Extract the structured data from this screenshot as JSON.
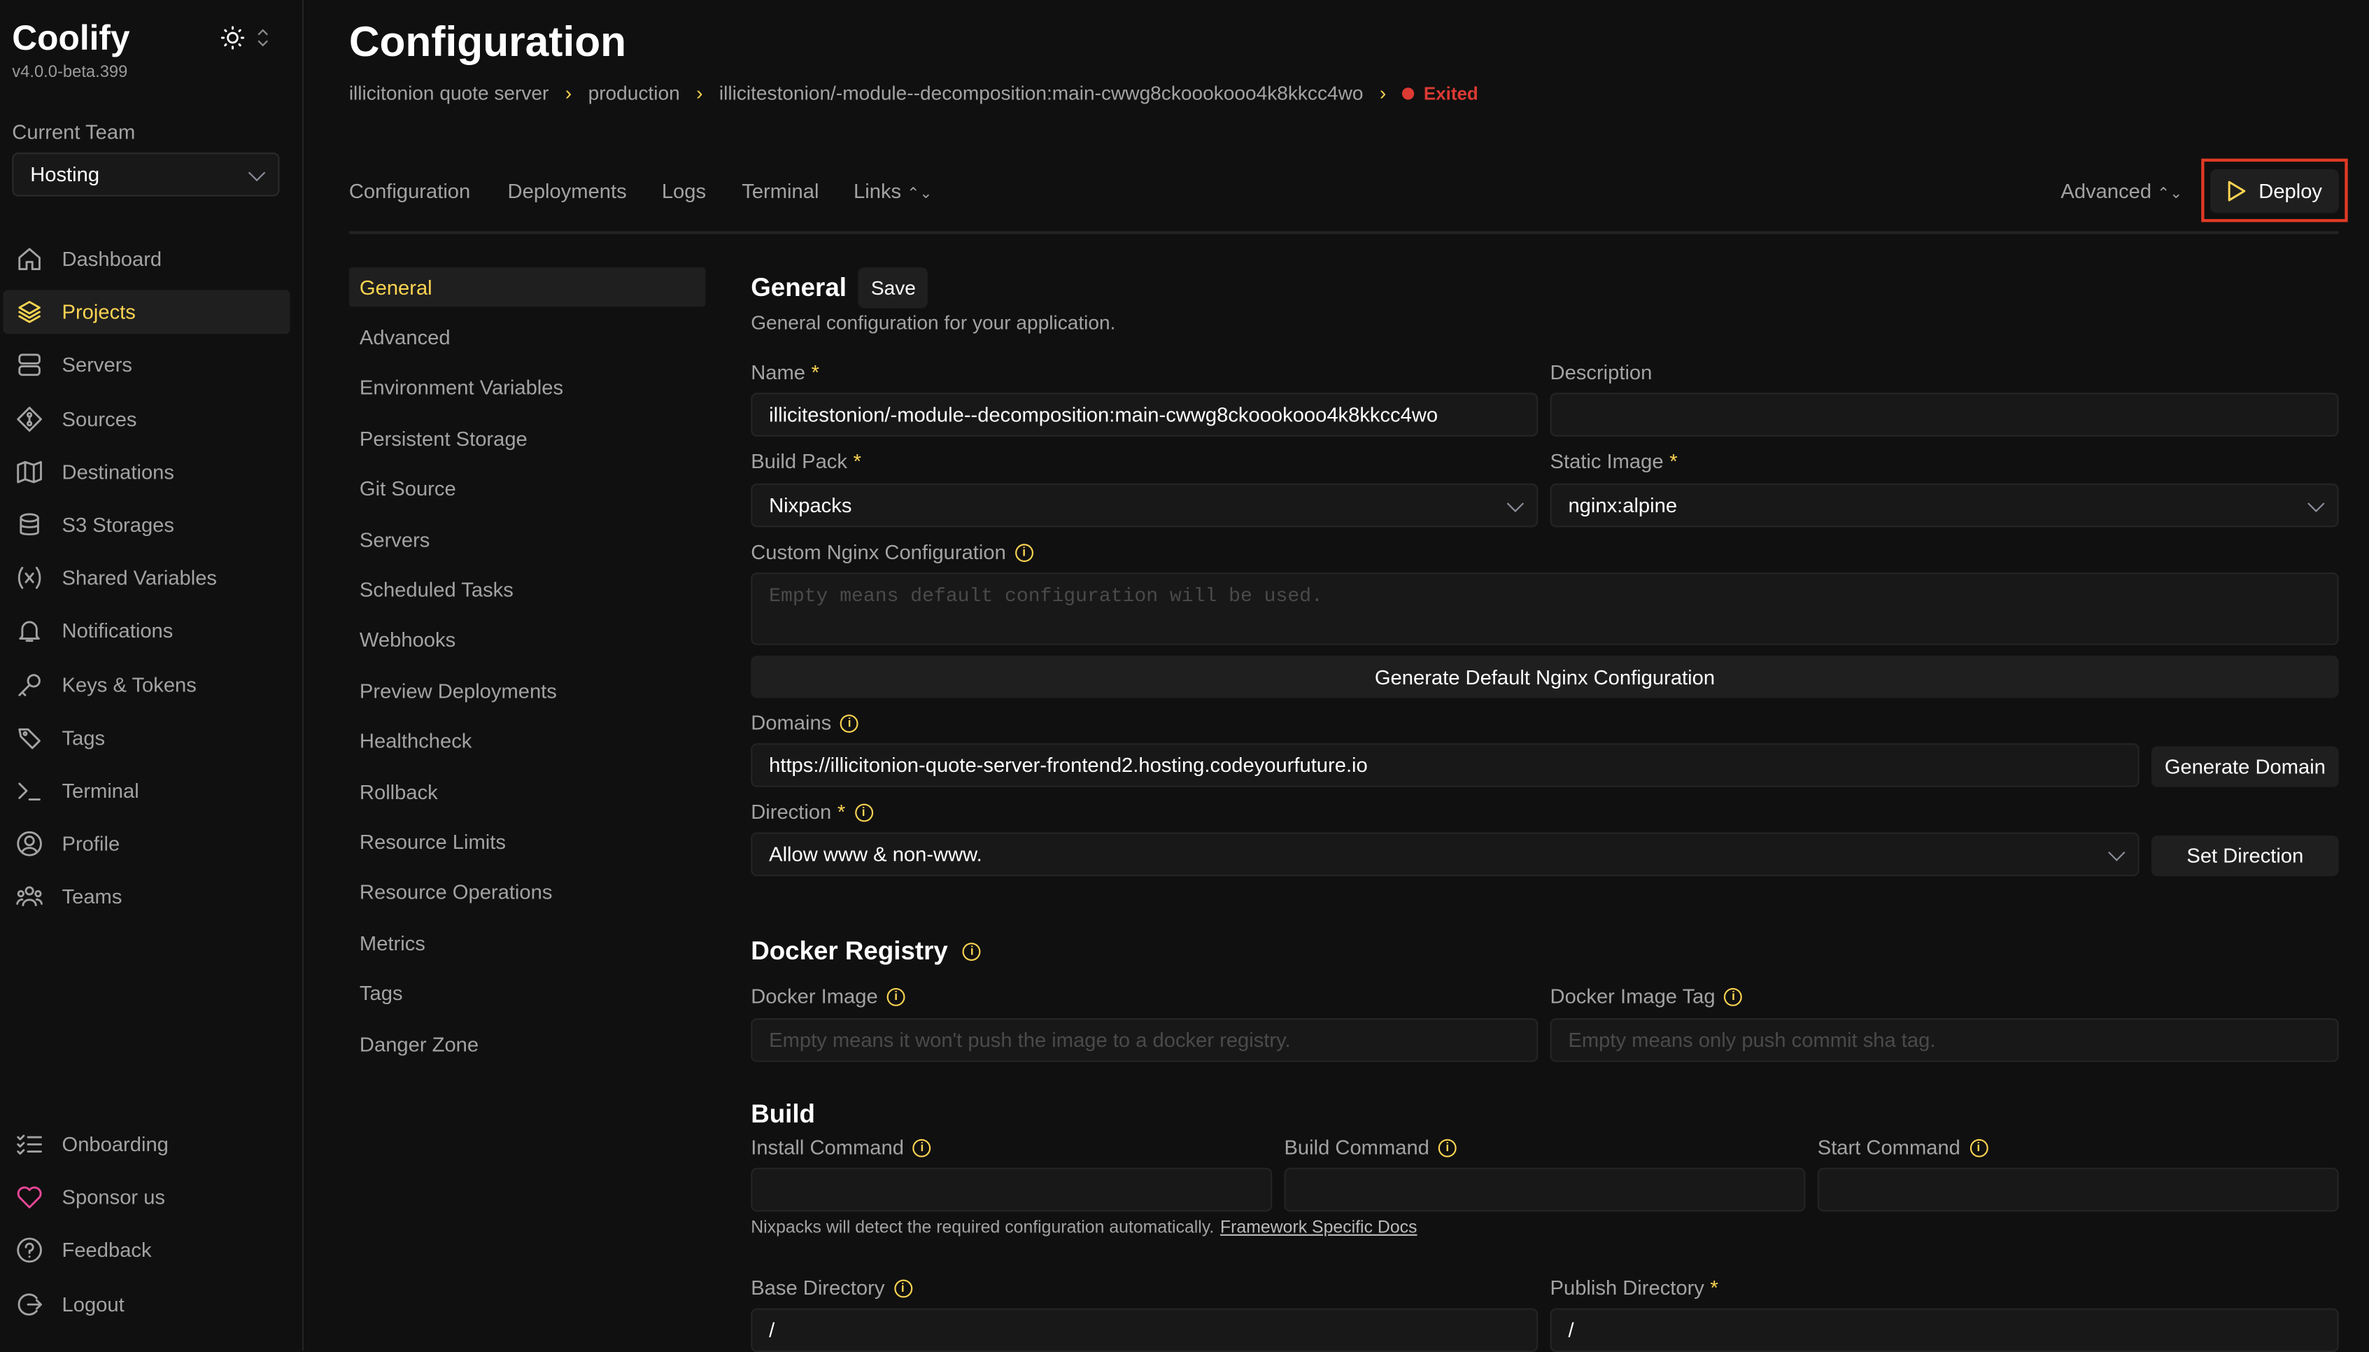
{
  "sidebar": {
    "logo": "Coolify",
    "version": "v4.0.0-beta.399",
    "team_label": "Current Team",
    "team_value": "Hosting",
    "items": [
      {
        "label": "Dashboard",
        "icon": "home-icon"
      },
      {
        "label": "Projects",
        "icon": "layers-icon",
        "active": true
      },
      {
        "label": "Servers",
        "icon": "server-icon"
      },
      {
        "label": "Sources",
        "icon": "git-icon"
      },
      {
        "label": "Destinations",
        "icon": "map-icon"
      },
      {
        "label": "S3 Storages",
        "icon": "database-icon"
      },
      {
        "label": "Shared Variables",
        "icon": "variable-icon"
      },
      {
        "label": "Notifications",
        "icon": "bell-icon"
      },
      {
        "label": "Keys & Tokens",
        "icon": "key-icon"
      },
      {
        "label": "Tags",
        "icon": "tag-icon"
      },
      {
        "label": "Terminal",
        "icon": "terminal-icon"
      },
      {
        "label": "Profile",
        "icon": "user-icon"
      },
      {
        "label": "Teams",
        "icon": "users-icon"
      }
    ],
    "bottom_items": [
      {
        "label": "Onboarding",
        "icon": "checklist-icon"
      },
      {
        "label": "Sponsor us",
        "icon": "heart-icon"
      },
      {
        "label": "Feedback",
        "icon": "help-icon"
      },
      {
        "label": "Logout",
        "icon": "logout-icon"
      }
    ]
  },
  "header": {
    "title": "Configuration",
    "breadcrumb": [
      "illicitonion quote server",
      "production",
      "illicitestonion/-module--decomposition:main-cwwg8ckoookooo4k8kkcc4wo"
    ],
    "status": "Exited",
    "status_color": "#dc3a33",
    "tabs": [
      "Configuration",
      "Deployments",
      "Logs",
      "Terminal",
      "Links"
    ],
    "advanced_label": "Advanced",
    "deploy_label": "Deploy",
    "accent": "#fcd452"
  },
  "subnav": [
    "General",
    "Advanced",
    "Environment Variables",
    "Persistent Storage",
    "Git Source",
    "Servers",
    "Scheduled Tasks",
    "Webhooks",
    "Preview Deployments",
    "Healthcheck",
    "Rollback",
    "Resource Limits",
    "Resource Operations",
    "Metrics",
    "Tags",
    "Danger Zone"
  ],
  "general": {
    "title": "General",
    "save_label": "Save",
    "subtitle": "General configuration for your application.",
    "name_label": "Name",
    "name_value": "illicitestonion/-module--decomposition:main-cwwg8ckoookooo4k8kkcc4wo",
    "description_label": "Description",
    "description_value": "",
    "build_pack_label": "Build Pack",
    "build_pack_value": "Nixpacks",
    "static_image_label": "Static Image",
    "static_image_value": "nginx:alpine",
    "nginx_label": "Custom Nginx Configuration",
    "nginx_placeholder": "Empty means default configuration will be used.",
    "generate_nginx_label": "Generate Default Nginx Configuration",
    "domains_label": "Domains",
    "domains_value": "https://illicitonion-quote-server-frontend2.hosting.codeyourfuture.io",
    "generate_domain_label": "Generate Domain",
    "direction_label": "Direction",
    "direction_value": "Allow www & non-www.",
    "set_direction_label": "Set Direction"
  },
  "docker_registry": {
    "title": "Docker Registry",
    "image_label": "Docker Image",
    "image_placeholder": "Empty means it won't push the image to a docker registry.",
    "tag_label": "Docker Image Tag",
    "tag_placeholder": "Empty means only push commit sha tag."
  },
  "build": {
    "title": "Build",
    "install_label": "Install Command",
    "build_label": "Build Command",
    "start_label": "Start Command",
    "hint": "Nixpacks will detect the required configuration automatically.",
    "docs_link": "Framework Specific Docs",
    "base_dir_label": "Base Directory",
    "base_dir_value": "/",
    "publish_dir_label": "Publish Directory",
    "publish_dir_value": "/"
  }
}
